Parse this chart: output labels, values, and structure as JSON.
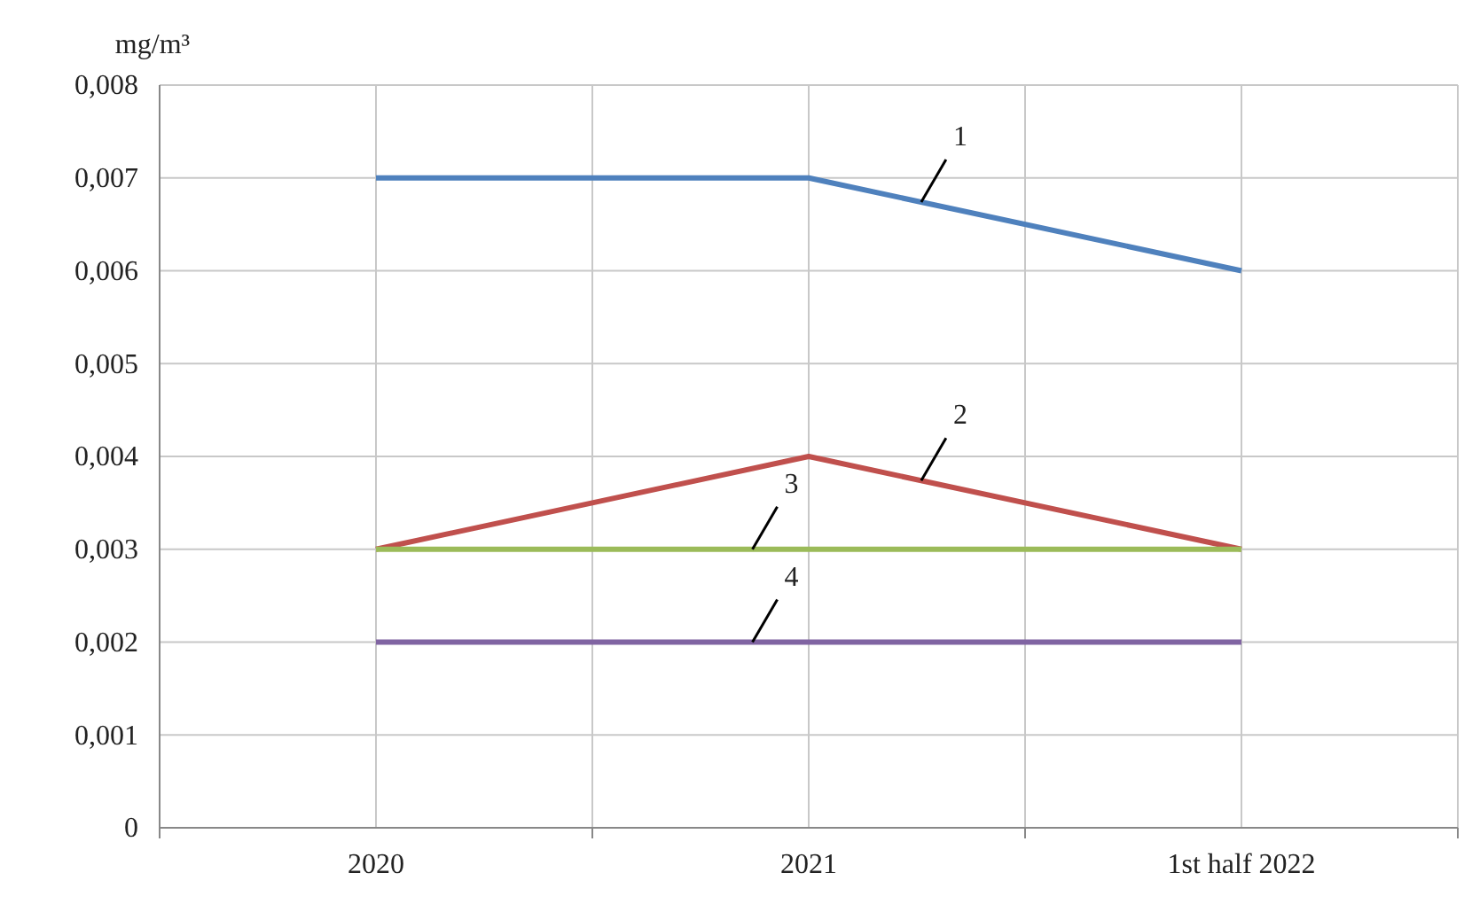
{
  "chart_data": {
    "type": "line",
    "ylabel": "mg/m³",
    "categories": [
      "2020",
      "2021",
      "1st half 2022"
    ],
    "series": [
      {
        "name": "1",
        "color": "#4f81bd",
        "values": [
          0.007,
          0.007,
          0.006
        ]
      },
      {
        "name": "2",
        "color": "#c0504d",
        "values": [
          0.003,
          0.004,
          0.003
        ]
      },
      {
        "name": "3",
        "color": "#9bbb59",
        "values": [
          0.003,
          0.003,
          0.003
        ]
      },
      {
        "name": "4",
        "color": "#8064a2",
        "values": [
          0.002,
          0.002,
          0.002
        ]
      }
    ],
    "ylim": [
      0,
      0.008
    ],
    "yticks": [
      0,
      {
        "value": 0.001,
        "label": "0,001"
      },
      {
        "value": 0.002,
        "label": "0,002"
      },
      {
        "value": 0.003,
        "label": "0,003"
      },
      {
        "value": 0.004,
        "label": "0,004"
      },
      {
        "value": 0.005,
        "label": "0,005"
      },
      {
        "value": 0.006,
        "label": "0,006"
      },
      {
        "value": 0.007,
        "label": "0,007"
      },
      {
        "value": 0.008,
        "label": "0,008"
      }
    ],
    "grid": true,
    "marker": "none",
    "line_style": "solid"
  }
}
